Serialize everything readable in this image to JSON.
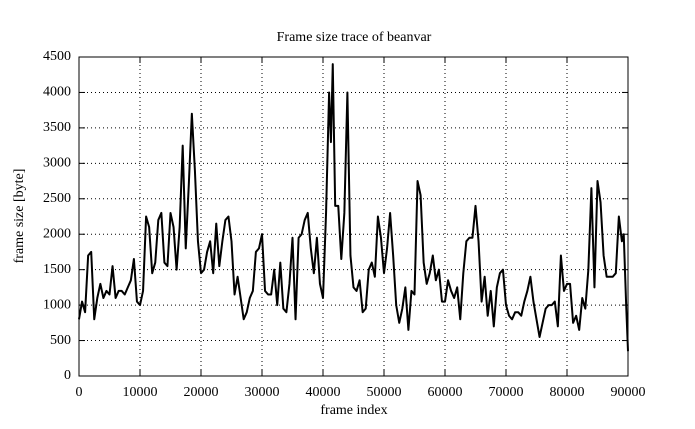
{
  "chart_data": {
    "type": "line",
    "title": "Frame size trace of beanvar",
    "x_label": "frame index",
    "y_label": "frame size [byte]",
    "x": [
      0,
      500,
      1000,
      1500,
      2000,
      2500,
      3000,
      3500,
      4000,
      4500,
      5000,
      5500,
      6000,
      6500,
      7000,
      7500,
      8000,
      8500,
      9000,
      9500,
      10000,
      10500,
      11000,
      11500,
      12000,
      12500,
      13000,
      13500,
      14000,
      14500,
      15000,
      15500,
      16000,
      16500,
      17000,
      17500,
      18000,
      18500,
      19000,
      19500,
      20000,
      20500,
      21000,
      21500,
      22000,
      22500,
      23000,
      23500,
      24000,
      24500,
      25000,
      25500,
      26000,
      26500,
      27000,
      27500,
      28000,
      28500,
      29000,
      29500,
      30000,
      30500,
      31000,
      31500,
      32000,
      32500,
      33000,
      33500,
      34000,
      34500,
      35000,
      35500,
      36000,
      36500,
      37000,
      37500,
      38000,
      38500,
      39000,
      39500,
      40000,
      40500,
      41000,
      41300,
      41600,
      42000,
      42500,
      43000,
      43500,
      44000,
      44500,
      45000,
      45500,
      46000,
      46500,
      47000,
      47500,
      48000,
      48500,
      49000,
      49500,
      50000,
      50500,
      51000,
      51500,
      52000,
      52500,
      53000,
      53500,
      54000,
      54500,
      55000,
      55500,
      56000,
      56500,
      57000,
      57500,
      58000,
      58500,
      59000,
      59500,
      60000,
      60500,
      61000,
      61500,
      62000,
      62500,
      63000,
      63500,
      64000,
      64500,
      65000,
      65500,
      66000,
      66500,
      67000,
      67500,
      68000,
      68500,
      69000,
      69500,
      70000,
      70500,
      71000,
      71500,
      72000,
      72500,
      73000,
      73500,
      74000,
      74500,
      75000,
      75500,
      76000,
      76500,
      77000,
      77500,
      78000,
      78500,
      79000,
      79500,
      80000,
      80500,
      81000,
      81500,
      82000,
      82500,
      83000,
      83500,
      84000,
      84500,
      85000,
      85500,
      86000,
      86500,
      87000,
      87500,
      88000,
      88500,
      89000,
      89300,
      89700,
      90000
    ],
    "values": [
      800,
      1050,
      900,
      1700,
      1750,
      800,
      1100,
      1300,
      1100,
      1200,
      1150,
      1550,
      1100,
      1200,
      1200,
      1150,
      1250,
      1350,
      1650,
      1050,
      1000,
      1200,
      2250,
      2100,
      1450,
      1600,
      2200,
      2300,
      1600,
      1550,
      2300,
      2100,
      1500,
      2100,
      3250,
      1800,
      2700,
      3700,
      2900,
      1900,
      1450,
      1500,
      1750,
      1900,
      1450,
      2150,
      1550,
      1900,
      2200,
      2250,
      1900,
      1150,
      1400,
      1100,
      800,
      900,
      1100,
      1200,
      1750,
      1800,
      2000,
      1200,
      1150,
      1150,
      1500,
      1000,
      1600,
      950,
      900,
      1300,
      1950,
      800,
      1950,
      2000,
      2200,
      2300,
      1800,
      1450,
      1950,
      1300,
      1100,
      2300,
      4000,
      3300,
      4400,
      2400,
      2400,
      1650,
      2300,
      4000,
      1700,
      1250,
      1200,
      1350,
      900,
      950,
      1500,
      1600,
      1400,
      2250,
      1950,
      1450,
      1800,
      2300,
      1700,
      1000,
      750,
      950,
      1250,
      650,
      1200,
      1150,
      2750,
      2550,
      1600,
      1300,
      1450,
      1700,
      1350,
      1500,
      1050,
      1050,
      1350,
      1200,
      1100,
      1250,
      800,
      1450,
      1900,
      1950,
      1950,
      2400,
      1900,
      1050,
      1400,
      850,
      1200,
      700,
      1250,
      1450,
      1500,
      1000,
      850,
      800,
      900,
      900,
      850,
      1050,
      1200,
      1400,
      1050,
      800,
      550,
      750,
      950,
      1000,
      1000,
      1050,
      700,
      1700,
      1200,
      1300,
      1300,
      750,
      850,
      650,
      1100,
      950,
      1500,
      2650,
      1250,
      2750,
      2450,
      1700,
      1400,
      1400,
      1400,
      1450,
      2250,
      1900,
      2000,
      1000,
      350
    ],
    "color": "#000000",
    "xlim": [
      0,
      90000
    ],
    "xticks": [
      0,
      10000,
      20000,
      30000,
      40000,
      50000,
      60000,
      70000,
      80000,
      90000
    ],
    "ylim": [
      0,
      4500
    ],
    "yticks": [
      0,
      500,
      1000,
      1500,
      2000,
      2500,
      3000,
      3500,
      4000,
      4500
    ],
    "grid": true
  }
}
